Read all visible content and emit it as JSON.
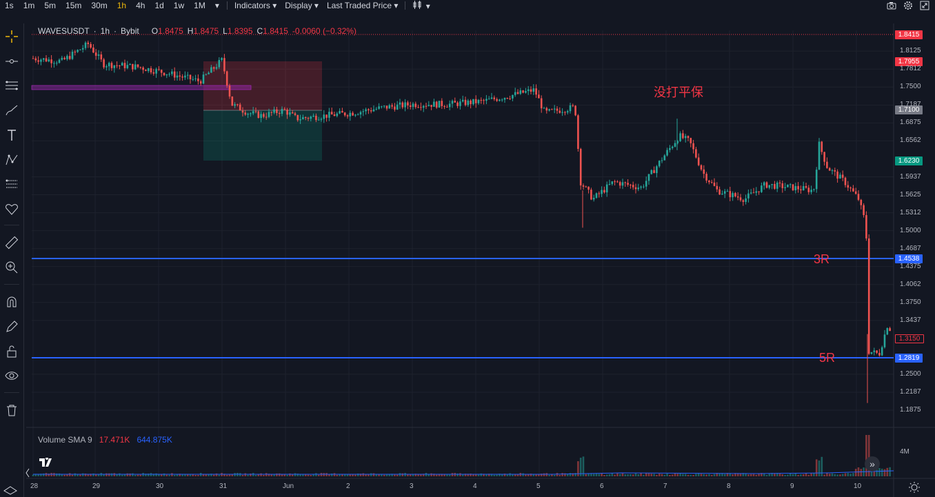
{
  "toolbar": {
    "timeframes": [
      "1s",
      "1m",
      "5m",
      "15m",
      "30m",
      "1h",
      "4h",
      "1d",
      "1w",
      "1M"
    ],
    "active_timeframe": "1h",
    "indicators_label": "Indicators",
    "display_label": "Display",
    "price_source_label": "Last Traded Price"
  },
  "legend": {
    "symbol": "WAVESUSDT",
    "interval": "1h",
    "exchange": "Bybit",
    "open_label": "O",
    "open": "1.8475",
    "high_label": "H",
    "high": "1.8475",
    "low_label": "L",
    "low": "1.8395",
    "close_label": "C",
    "close": "1.8415",
    "change": "-0.0060 (−0.32%)"
  },
  "volume_legend": {
    "label": "Volume SMA 9",
    "value1": "17.471K",
    "value2": "644.875K"
  },
  "annotations": {
    "note_cn": "没打平保",
    "label_3r": "3R",
    "label_5r": "5R"
  },
  "price_tags": {
    "current": "1.8415",
    "stop": "1.7955",
    "entry": "1.7100",
    "target": "1.6230",
    "line_3r": "1.4538",
    "last": "1.3150",
    "line_5r": "1.2819"
  },
  "volume_axis_label": "4M",
  "colors": {
    "background": "#131722",
    "up": "#26a69a",
    "down": "#ef5350",
    "hline": "#2962ff",
    "annotation": "#f23645"
  },
  "chart_data": {
    "type": "candlestick",
    "symbol": "WAVESUSDT",
    "y_ticks": [
      "1.8125",
      "1.7812",
      "1.7500",
      "1.7187",
      "1.6875",
      "1.6562",
      "1.5937",
      "1.5625",
      "1.5312",
      "1.5000",
      "1.4687",
      "1.4375",
      "1.4062",
      "1.3750",
      "1.3437",
      "1.2500",
      "1.2187",
      "1.1875"
    ],
    "ylim": [
      1.17,
      1.85
    ],
    "x_ticks": [
      "28",
      "29",
      "30",
      "31",
      "Jun",
      "2",
      "3",
      "4",
      "5",
      "6",
      "7",
      "8",
      "9",
      "10"
    ],
    "horizontal_lines": [
      {
        "label": "3R",
        "price": 1.4538,
        "color": "#2962ff"
      },
      {
        "label": "5R",
        "price": 1.2819,
        "color": "#2962ff"
      }
    ],
    "position_box": {
      "entry": 1.71,
      "stop": 1.7955,
      "target": 1.623,
      "side": "short"
    },
    "key_levels": [
      {
        "day": "28",
        "price": 1.8
      },
      {
        "day": "29",
        "price": 1.79
      },
      {
        "day": "30",
        "price": 1.765
      },
      {
        "day": "31",
        "price": 1.79
      },
      {
        "day": "Jun",
        "price": 1.7
      },
      {
        "day": "2",
        "price": 1.705
      },
      {
        "day": "3",
        "price": 1.72
      },
      {
        "day": "4",
        "price": 1.735
      },
      {
        "day": "5",
        "price": 1.71
      },
      {
        "day": "5",
        "price": 1.55
      },
      {
        "day": "6",
        "price": 1.575
      },
      {
        "day": "7",
        "price": 1.67
      },
      {
        "day": "8",
        "price": 1.555
      },
      {
        "day": "9",
        "price": 1.575
      },
      {
        "day": "9",
        "price": 1.66
      },
      {
        "day": "10",
        "price": 1.55
      },
      {
        "day": "10",
        "price": 1.2
      },
      {
        "day": "10",
        "price": 1.315
      }
    ]
  }
}
